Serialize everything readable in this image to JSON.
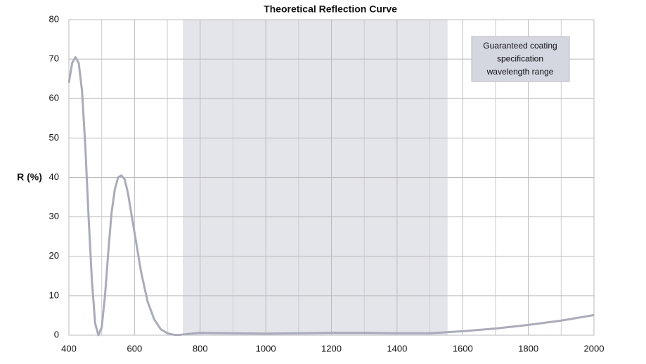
{
  "chart_data": {
    "type": "line",
    "title": "Theoretical Reflection Curve",
    "ylabel": "R (%)",
    "x": [
      400,
      410,
      420,
      430,
      440,
      450,
      460,
      470,
      480,
      490,
      500,
      510,
      520,
      530,
      540,
      550,
      560,
      570,
      580,
      600,
      620,
      640,
      660,
      680,
      700,
      720,
      740,
      760,
      800,
      900,
      1000,
      1100,
      1200,
      1300,
      1400,
      1500,
      1600,
      1700,
      1800,
      1900,
      2000
    ],
    "series": [
      {
        "color": "#a9abbd",
        "values": [
          64,
          69,
          70.5,
          69,
          62,
          48,
          30,
          14,
          3,
          0,
          2,
          10,
          21,
          31,
          37,
          40,
          40.5,
          39.5,
          36,
          26,
          16,
          8.5,
          4,
          1.5,
          0.5,
          0.1,
          0.1,
          0.3,
          0.6,
          0.5,
          0.4,
          0.5,
          0.6,
          0.6,
          0.5,
          0.5,
          1.0,
          1.7,
          2.6,
          3.7,
          5.1
        ]
      }
    ],
    "xlim": [
      400,
      2000
    ],
    "ylim": [
      0,
      80
    ],
    "xticks": [
      400,
      600,
      800,
      1000,
      1200,
      1400,
      1600,
      1800,
      2000
    ],
    "xminor": [
      500,
      700,
      900,
      1100,
      1300,
      1500,
      1700,
      1900
    ],
    "yticks": [
      0,
      10,
      20,
      30,
      40,
      50,
      60,
      70,
      80
    ],
    "grid": true,
    "shaded_range": [
      747,
      1554
    ],
    "shade_color": "#e4e5ea",
    "annotation": [
      "Guaranteed coating",
      "specification",
      "wavelength range"
    ]
  }
}
